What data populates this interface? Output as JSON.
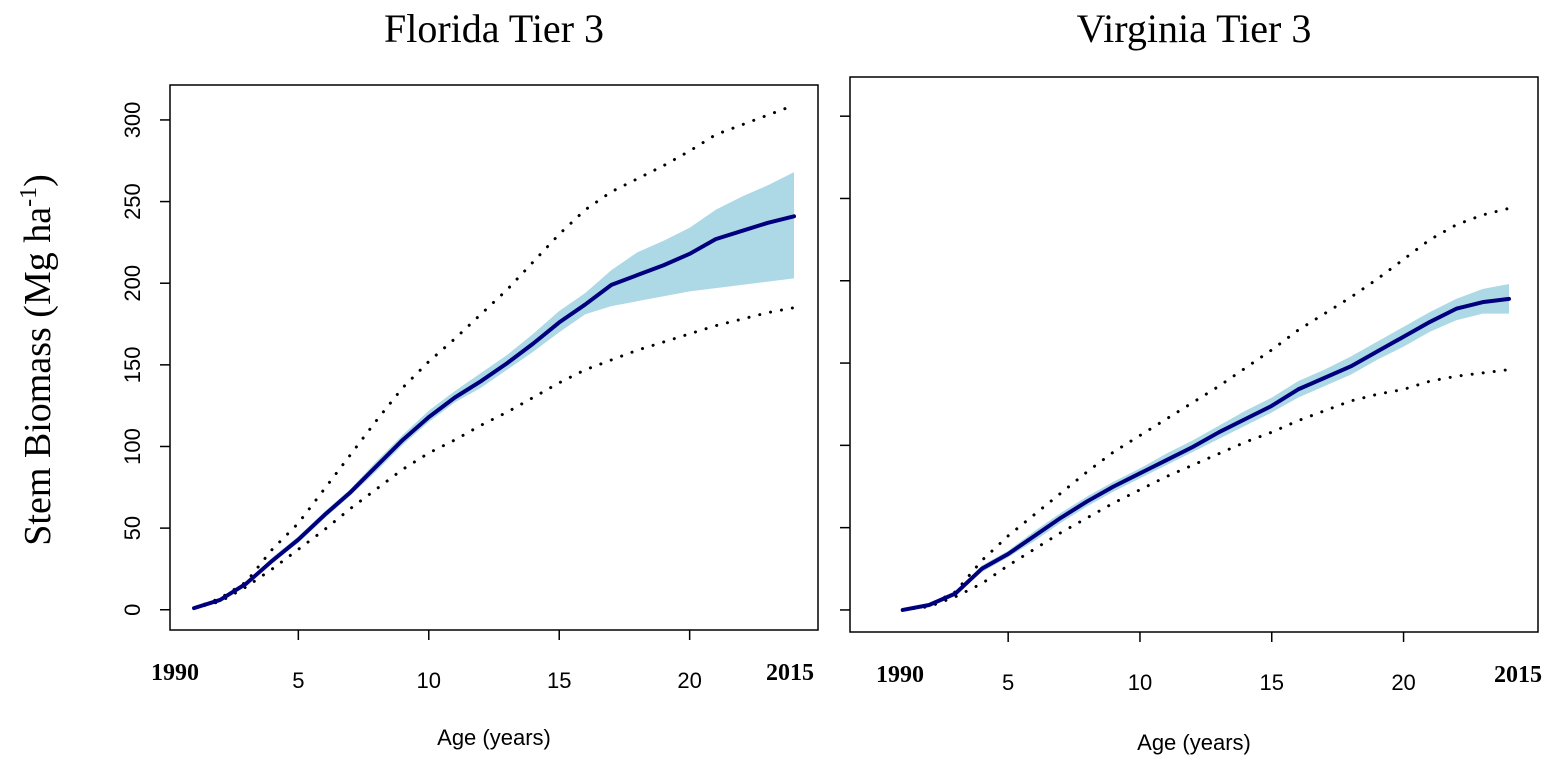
{
  "y_label": [
    "Stem Biomass (Mg ha",
    "-1",
    ")"
  ],
  "chart_data": [
    {
      "type": "line",
      "title": "Florida Tier 3",
      "x_label": "Age (years)",
      "end_labels": [
        "1990",
        "2015"
      ],
      "x": [
        1,
        2,
        3,
        4,
        5,
        6,
        7,
        8,
        9,
        10,
        11,
        12,
        13,
        14,
        15,
        16,
        17,
        18,
        19,
        20,
        21,
        22,
        23,
        24
      ],
      "xlim": [
        0.08,
        24.92
      ],
      "xticks": [
        5,
        10,
        15,
        20
      ],
      "ylim": [
        -12.4,
        321.4
      ],
      "yticks": [
        0,
        50,
        100,
        150,
        200,
        250,
        300
      ],
      "ytick_labels": true,
      "band": {
        "color": "#add8e6",
        "lower": [
          1,
          5,
          15,
          29,
          41,
          56,
          70,
          85,
          101,
          115,
          127,
          136,
          147,
          158,
          170,
          181,
          186,
          189,
          192,
          195,
          197,
          199,
          201,
          203
        ],
        "upper": [
          2,
          7,
          17,
          32,
          45,
          60,
          74,
          91,
          107,
          122,
          134,
          145,
          156,
          169,
          183,
          194,
          208,
          219,
          226,
          234,
          245,
          253,
          260,
          268
        ]
      },
      "series": [
        {
          "color": "#000000",
          "dash": "dotted",
          "values": [
            1,
            7,
            17,
            37,
            53,
            74,
            95,
            116,
            136,
            152,
            166,
            181,
            196,
            213,
            230,
            245,
            256,
            264,
            272,
            281,
            291,
            297,
            303,
            309
          ]
        },
        {
          "color": "#000000",
          "dash": "dotted",
          "values": [
            1,
            5,
            14,
            25,
            37,
            49,
            62,
            74,
            86,
            96,
            104,
            113,
            121,
            130,
            139,
            147,
            153,
            159,
            164,
            169,
            174,
            178,
            182,
            185
          ]
        },
        {
          "color": "#00007f",
          "dash": "solid",
          "values": [
            1,
            6,
            16,
            30,
            43,
            58,
            72,
            88,
            104,
            118,
            130,
            140,
            151,
            163,
            176,
            187,
            199,
            205,
            211,
            218,
            227,
            232,
            237,
            241
          ]
        }
      ]
    },
    {
      "type": "line",
      "title": "Virginia Tier 3",
      "x_label": "Age (years)",
      "end_labels": [
        "1990",
        "2015"
      ],
      "x": [
        1,
        2,
        3,
        4,
        5,
        6,
        7,
        8,
        9,
        10,
        11,
        12,
        13,
        14,
        15,
        16,
        17,
        18,
        19,
        20,
        21,
        22,
        23,
        24
      ],
      "xlim": [
        -1,
        25.1
      ],
      "xticks": [
        5,
        10,
        15,
        20
      ],
      "ylim": [
        -13.4,
        323.8
      ],
      "yticks": [
        0,
        50,
        100,
        150,
        200,
        250,
        300
      ],
      "ytick_labels": false,
      "band": {
        "color": "#add8e6",
        "lower": [
          0,
          2,
          9,
          23,
          32,
          42,
          53,
          63,
          72,
          80,
          88,
          96,
          104,
          112,
          120,
          129,
          136,
          143,
          152,
          160,
          169,
          176,
          180,
          180
        ],
        "upper": [
          1,
          4,
          11,
          27,
          36,
          48,
          59,
          69,
          78,
          86,
          95,
          103,
          112,
          121,
          129,
          139,
          146,
          154,
          163,
          172,
          181,
          189,
          195,
          198
        ]
      },
      "series": [
        {
          "color": "#000000",
          "dash": "dotted",
          "values": [
            0,
            3,
            11,
            30,
            45,
            58,
            71,
            84,
            96,
            106,
            116,
            126,
            136,
            147,
            158,
            170,
            180,
            190,
            201,
            213,
            225,
            234,
            240,
            244
          ]
        },
        {
          "color": "#000000",
          "dash": "dotted",
          "values": [
            0,
            2,
            8,
            16,
            27,
            37,
            47,
            56,
            65,
            73,
            81,
            88,
            95,
            102,
            108,
            115,
            121,
            127,
            131,
            134,
            139,
            142,
            144,
            146
          ]
        },
        {
          "color": "#00007f",
          "dash": "solid",
          "values": [
            0,
            3,
            10,
            25,
            34,
            45,
            56,
            66,
            75,
            83,
            91,
            99,
            108,
            116,
            124,
            134,
            141,
            148,
            157,
            166,
            175,
            183,
            187,
            189
          ]
        }
      ]
    }
  ]
}
